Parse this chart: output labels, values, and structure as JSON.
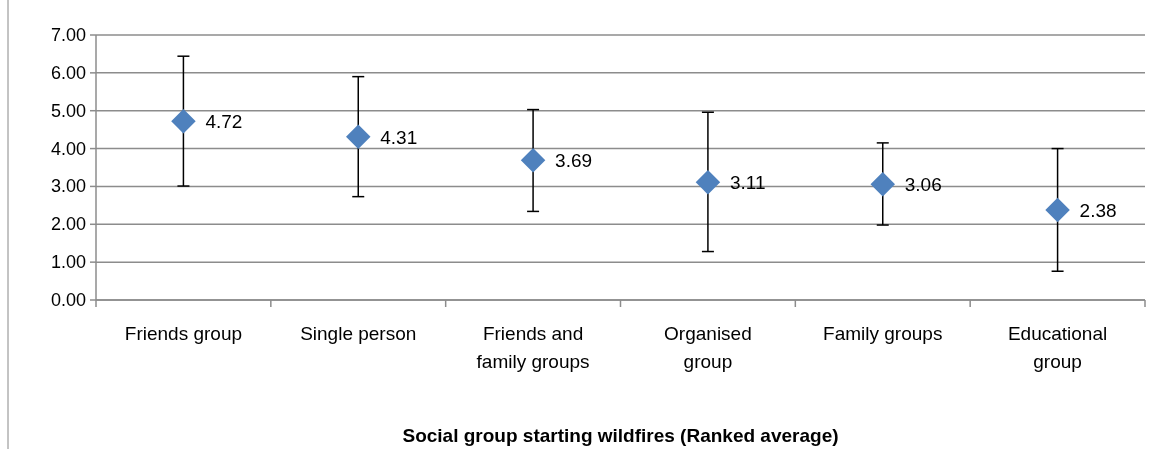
{
  "chart_data": {
    "type": "scatter",
    "xlabel": "Social group starting wildfires (Ranked average)",
    "categories": [
      "Friends group",
      "Single person",
      "Friends and family groups",
      "Organised group",
      "Family groups",
      "Educational group"
    ],
    "series": [
      {
        "color": "#4f81bd",
        "values": [
          4.72,
          4.31,
          3.69,
          3.11,
          3.06,
          2.38
        ],
        "errors": [
          [
            3.01,
            6.44
          ],
          [
            2.73,
            5.9
          ],
          [
            2.34,
            5.03
          ],
          [
            1.28,
            4.96
          ],
          [
            1.98,
            4.15
          ],
          [
            0.76,
            4.0
          ]
        ]
      }
    ],
    "ylim": [
      0,
      7
    ],
    "yticks": [
      {
        "value": 0,
        "label": "0.00"
      },
      {
        "value": 1,
        "label": "1.00"
      },
      {
        "value": 2,
        "label": "2.00"
      },
      {
        "value": 3,
        "label": "3.00"
      },
      {
        "value": 4,
        "label": "4.00"
      },
      {
        "value": 5,
        "label": "5.00"
      },
      {
        "value": 6,
        "label": "6.00"
      },
      {
        "value": 7,
        "label": "7.00"
      }
    ],
    "grid": "y",
    "marker": "diamond",
    "data_labels": true
  }
}
